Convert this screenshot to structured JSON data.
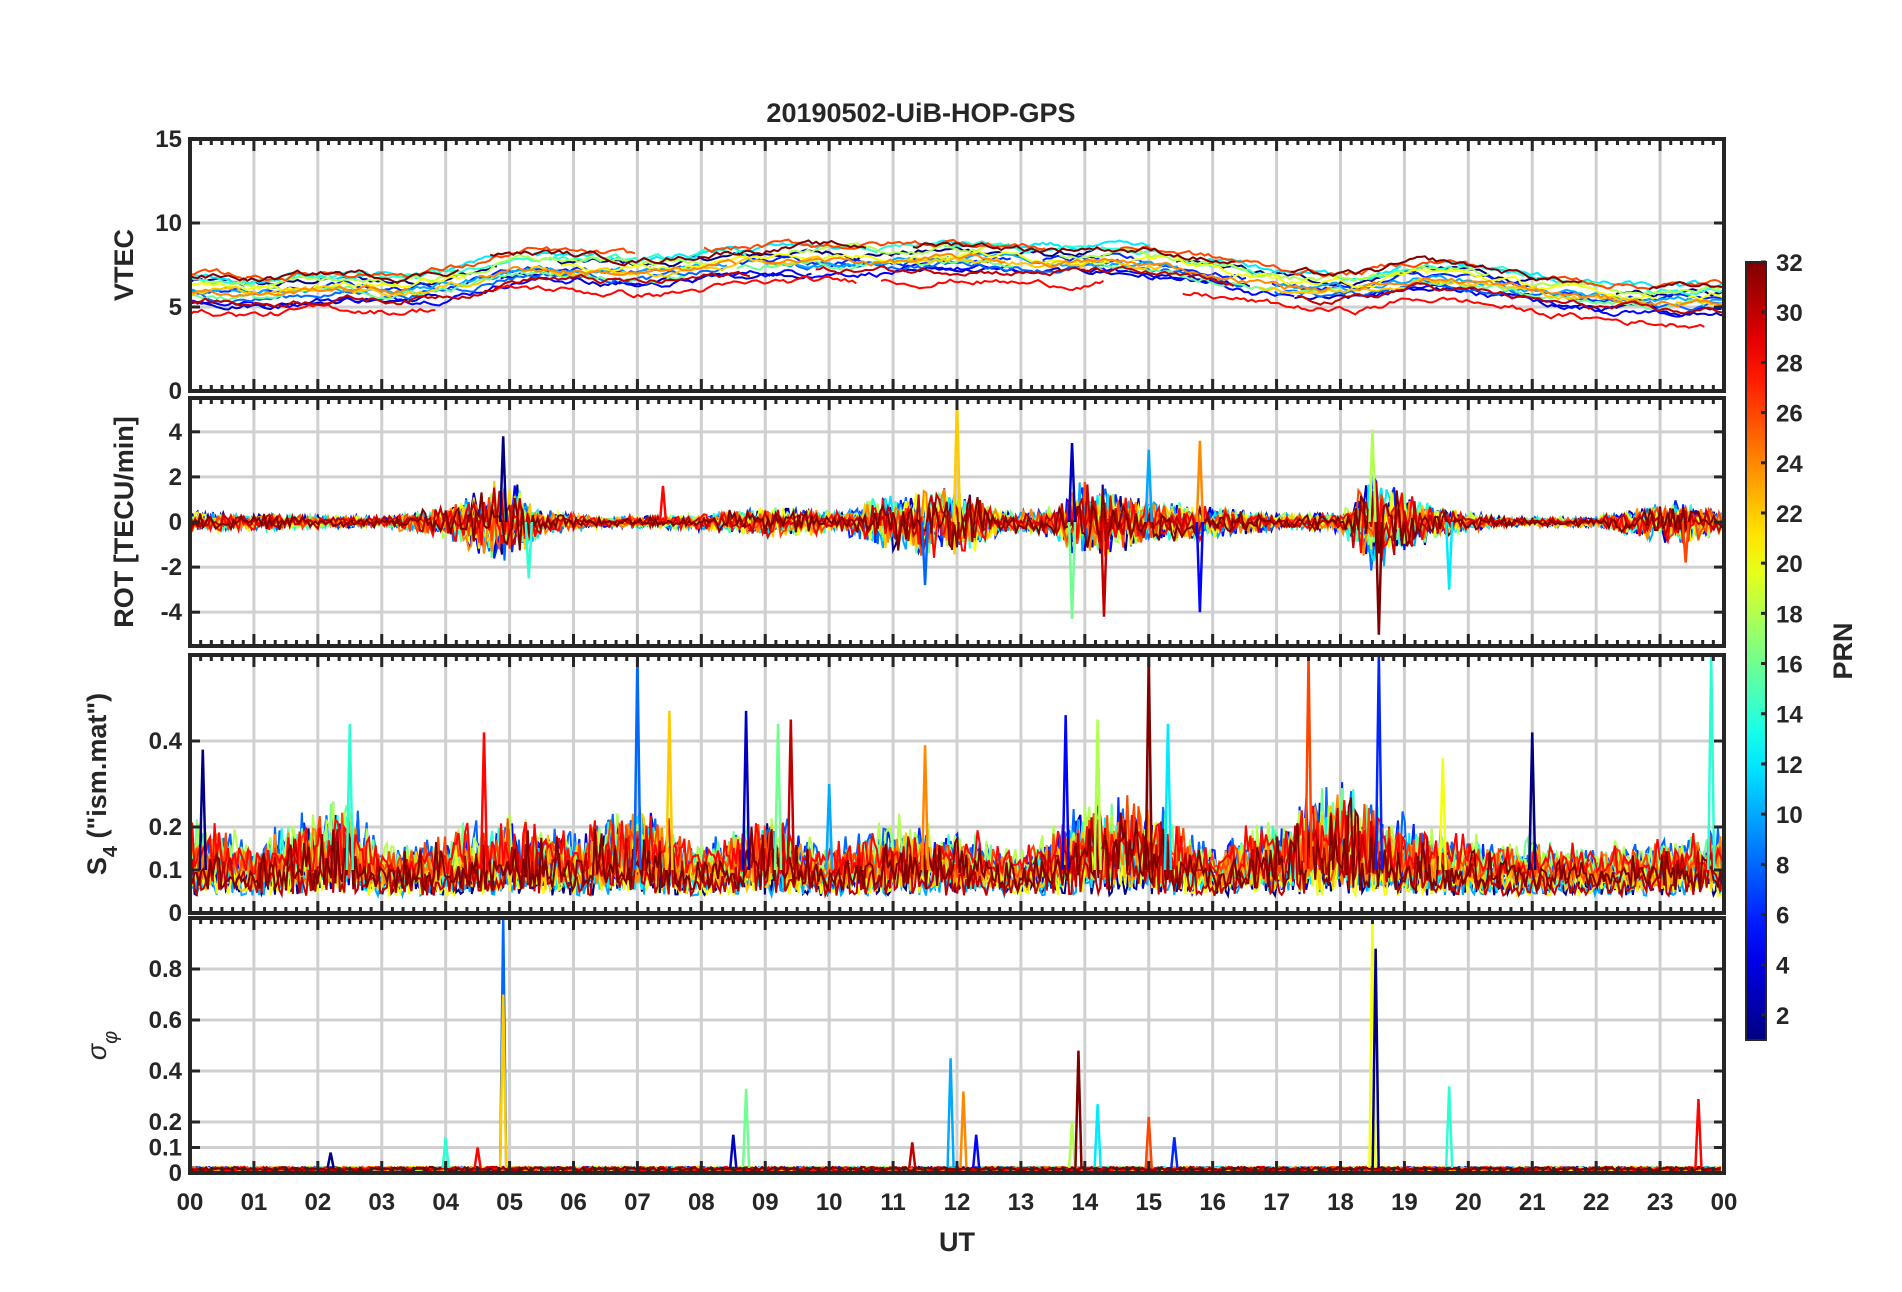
{
  "chart_data": {
    "type": "line",
    "title": "20190502-UiB-HOP-GPS",
    "xlabel": "UT",
    "x_tick_labels": [
      "00",
      "01",
      "02",
      "03",
      "04",
      "05",
      "06",
      "07",
      "08",
      "09",
      "10",
      "11",
      "12",
      "13",
      "14",
      "15",
      "16",
      "17",
      "18",
      "19",
      "20",
      "21",
      "22",
      "23",
      "00"
    ],
    "xlim": [
      0,
      24
    ],
    "panels": [
      {
        "name": "vtec",
        "ylabel": "VTEC",
        "ylim": [
          0,
          15
        ],
        "y_ticks": [
          0,
          5,
          10,
          15
        ],
        "y_tick_labels": [
          "0",
          "5",
          "10",
          "15"
        ],
        "base_profile": [
          [
            0,
            6.0
          ],
          [
            1,
            5.8
          ],
          [
            2,
            6.3
          ],
          [
            3,
            6.0
          ],
          [
            4,
            6.5
          ],
          [
            5,
            7.5
          ],
          [
            6,
            7.2
          ],
          [
            7,
            7.0
          ],
          [
            8,
            7.5
          ],
          [
            9,
            7.8
          ],
          [
            10,
            7.8
          ],
          [
            11,
            7.8
          ],
          [
            12,
            8.0
          ],
          [
            13,
            7.6
          ],
          [
            14,
            7.8
          ],
          [
            15,
            7.5
          ],
          [
            16,
            6.8
          ],
          [
            17,
            6.2
          ],
          [
            18,
            6.0
          ],
          [
            19,
            7.0
          ],
          [
            20,
            6.5
          ],
          [
            21,
            5.8
          ],
          [
            22,
            5.5
          ],
          [
            23,
            5.3
          ],
          [
            24,
            5.5
          ]
        ],
        "spread": 1.4,
        "noise": 0.35
      },
      {
        "name": "rot",
        "ylabel": "ROT [TECU/min]",
        "ylim": [
          -5.5,
          5.5
        ],
        "y_ticks": [
          -4,
          -2,
          0,
          2,
          4
        ],
        "y_tick_labels": [
          "-4",
          "-2",
          "0",
          "2",
          "4"
        ],
        "activity": [
          [
            0,
            0.4
          ],
          [
            1.5,
            0.3
          ],
          [
            3,
            0.2
          ],
          [
            4,
            0.6
          ],
          [
            4.9,
            1.8
          ],
          [
            5.5,
            0.5
          ],
          [
            6.5,
            0.2
          ],
          [
            8,
            0.3
          ],
          [
            9,
            0.6
          ],
          [
            10.2,
            0.4
          ],
          [
            10.8,
            1.0
          ],
          [
            12,
            1.4
          ],
          [
            12.8,
            0.4
          ],
          [
            13.5,
            0.6
          ],
          [
            14,
            1.6
          ],
          [
            15,
            0.8
          ],
          [
            16,
            0.6
          ],
          [
            17,
            0.3
          ],
          [
            18,
            0.4
          ],
          [
            18.5,
            1.8
          ],
          [
            19.5,
            0.6
          ],
          [
            20.5,
            0.2
          ],
          [
            22,
            0.2
          ],
          [
            23.3,
            0.9
          ],
          [
            24,
            0.4
          ]
        ],
        "peak_spikes": [
          [
            4.9,
            3.8
          ],
          [
            5.3,
            -2.5
          ],
          [
            7.4,
            1.6
          ],
          [
            11.5,
            -2.8
          ],
          [
            12.0,
            5.5
          ],
          [
            13.8,
            3.5
          ],
          [
            13.8,
            -4.3
          ],
          [
            14.3,
            -4.2
          ],
          [
            15.0,
            3.2
          ],
          [
            15.8,
            3.6
          ],
          [
            15.8,
            -4.0
          ],
          [
            18.5,
            4.1
          ],
          [
            18.6,
            -5.0
          ],
          [
            19.7,
            -3.0
          ],
          [
            23.4,
            -1.8
          ]
        ]
      },
      {
        "name": "s4",
        "ylabel": "S4 (\"ism.mat\")",
        "ylabel_main": "S",
        "ylabel_sub": "4",
        "ylabel_tail": " (\"ism.mat\")",
        "ylim": [
          0,
          0.6
        ],
        "y_ticks": [
          0,
          0.1,
          0.2,
          0.4
        ],
        "y_tick_labels": [
          "0",
          "0.1",
          "0.2",
          "0.4"
        ],
        "activity": [
          [
            0,
            0.12
          ],
          [
            1,
            0.08
          ],
          [
            2,
            0.14
          ],
          [
            2.5,
            0.18
          ],
          [
            3,
            0.06
          ],
          [
            4,
            0.1
          ],
          [
            5,
            0.12
          ],
          [
            6,
            0.1
          ],
          [
            7,
            0.16
          ],
          [
            8,
            0.06
          ],
          [
            9,
            0.14
          ],
          [
            10,
            0.06
          ],
          [
            11,
            0.12
          ],
          [
            12,
            0.1
          ],
          [
            13,
            0.05
          ],
          [
            14,
            0.16
          ],
          [
            15,
            0.16
          ],
          [
            16,
            0.06
          ],
          [
            17,
            0.12
          ],
          [
            18,
            0.2
          ],
          [
            19,
            0.12
          ],
          [
            20,
            0.08
          ],
          [
            21,
            0.08
          ],
          [
            22,
            0.06
          ],
          [
            23,
            0.08
          ],
          [
            24,
            0.1
          ]
        ],
        "peak_spikes": [
          [
            0.2,
            0.38
          ],
          [
            2.5,
            0.44
          ],
          [
            4.6,
            0.42
          ],
          [
            7.0,
            0.6
          ],
          [
            7.5,
            0.47
          ],
          [
            8.7,
            0.47
          ],
          [
            9.2,
            0.44
          ],
          [
            9.4,
            0.45
          ],
          [
            10.0,
            0.3
          ],
          [
            11.5,
            0.39
          ],
          [
            13.7,
            0.46
          ],
          [
            14.2,
            0.45
          ],
          [
            15.0,
            0.6
          ],
          [
            15.3,
            0.44
          ],
          [
            17.5,
            0.6
          ],
          [
            18.6,
            0.6
          ],
          [
            19.6,
            0.36
          ],
          [
            21.0,
            0.42
          ],
          [
            23.8,
            0.6
          ]
        ]
      },
      {
        "name": "sigma_phi",
        "ylabel": "σ φ",
        "ylabel_main": "σ",
        "ylabel_sub": "φ",
        "ylim": [
          0,
          1.0
        ],
        "y_ticks": [
          0,
          0.1,
          0.2,
          0.4,
          0.6,
          0.8
        ],
        "y_tick_labels": [
          "0",
          "0.1",
          "0.2",
          "0.4",
          "0.6",
          "0.8"
        ],
        "baseline": 0.02,
        "peak_spikes": [
          [
            2.2,
            0.08
          ],
          [
            4.0,
            0.14
          ],
          [
            4.5,
            0.1
          ],
          [
            4.9,
            1.0
          ],
          [
            4.9,
            0.7
          ],
          [
            8.5,
            0.15
          ],
          [
            8.7,
            0.33
          ],
          [
            11.3,
            0.12
          ],
          [
            11.9,
            0.45
          ],
          [
            12.1,
            0.32
          ],
          [
            12.3,
            0.15
          ],
          [
            13.8,
            0.2
          ],
          [
            13.9,
            0.48
          ],
          [
            14.2,
            0.27
          ],
          [
            15.0,
            0.22
          ],
          [
            15.4,
            0.14
          ],
          [
            18.5,
            1.0
          ],
          [
            18.55,
            0.88
          ],
          [
            19.7,
            0.34
          ],
          [
            23.6,
            0.29
          ]
        ]
      }
    ],
    "colorbar": {
      "label": "PRN",
      "min": 1,
      "max": 32,
      "ticks": [
        2,
        4,
        6,
        8,
        10,
        12,
        14,
        16,
        18,
        20,
        22,
        24,
        26,
        28,
        30,
        32
      ],
      "tick_labels": [
        "2",
        "4",
        "6",
        "8",
        "10",
        "12",
        "14",
        "16",
        "18",
        "20",
        "22",
        "24",
        "26",
        "28",
        "30",
        "32"
      ],
      "colormap": "jet"
    },
    "series_prn": [
      1,
      3,
      5,
      6,
      8,
      10,
      12,
      14,
      16,
      18,
      20,
      22,
      24,
      26,
      28,
      30,
      32
    ]
  }
}
